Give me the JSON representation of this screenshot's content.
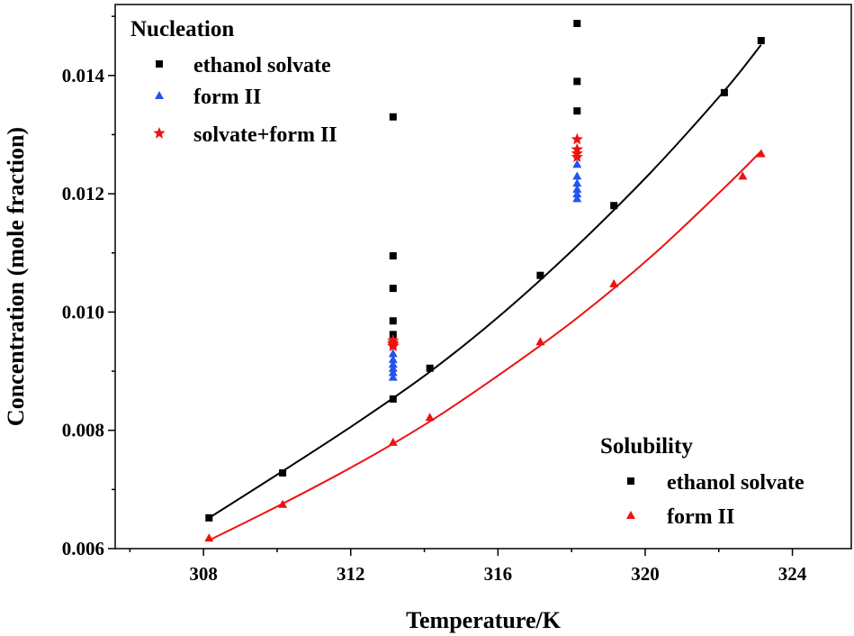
{
  "chart_data": {
    "type": "scatter",
    "xlabel": "Temperature/K",
    "ylabel": "Concentration (mole fraction)",
    "xlim": [
      305.6,
      325.6
    ],
    "ylim": [
      0.006,
      0.0152
    ],
    "x_ticks": [
      308,
      312,
      316,
      320,
      324
    ],
    "x_tick_labels": [
      "308",
      "312",
      "316",
      "320",
      "324"
    ],
    "y_ticks": [
      0.006,
      0.008,
      0.01,
      0.012,
      0.014
    ],
    "y_tick_labels": [
      "0.006",
      "0.008",
      "0.010",
      "0.012",
      "0.014"
    ],
    "legend_nucleation": {
      "title": "Nucleation",
      "placement": "top-left",
      "entries": [
        {
          "label": "ethanol solvate",
          "marker": "square",
          "color": "#000000"
        },
        {
          "label": "form II",
          "marker": "triangle",
          "color": "#2255ee"
        },
        {
          "label": "solvate+form II",
          "marker": "star",
          "color": "#ee1111"
        }
      ]
    },
    "legend_solubility": {
      "title": "Solubility",
      "placement": "bottom-right",
      "entries": [
        {
          "label": "ethanol solvate",
          "marker": "square",
          "color": "#000000"
        },
        {
          "label": "form II",
          "marker": "triangle",
          "color": "#ee1111"
        }
      ]
    },
    "series": [
      {
        "name": "Solubility - ethanol solvate",
        "marker": "square",
        "color": "#000000",
        "x": [
          308.15,
          310.15,
          313.15,
          314.15,
          317.15,
          319.15,
          322.15,
          323.15
        ],
        "y": [
          0.00652,
          0.00728,
          0.00853,
          0.00905,
          0.01062,
          0.0118,
          0.01371,
          0.01459
        ]
      },
      {
        "name": "Solubility - form II",
        "marker": "triangle",
        "color": "#ee1111",
        "x": [
          308.15,
          310.15,
          313.15,
          314.15,
          317.15,
          319.15,
          322.65,
          323.15
        ],
        "y": [
          0.00618,
          0.00675,
          0.0078,
          0.00822,
          0.0095,
          0.01048,
          0.0123,
          0.01268
        ]
      },
      {
        "name": "Nucleation - ethanol solvate",
        "marker": "square",
        "color": "#000000",
        "x": [
          313.15,
          313.15,
          313.15,
          313.15,
          313.15,
          318.15,
          318.15,
          318.15
        ],
        "y": [
          0.0133,
          0.01095,
          0.0104,
          0.00985,
          0.00962,
          0.01488,
          0.0139,
          0.0134
        ]
      },
      {
        "name": "Nucleation - form II",
        "marker": "triangle",
        "color": "#2255ee",
        "x": [
          313.15,
          313.15,
          313.15,
          313.15,
          313.15,
          313.15,
          318.15,
          318.15,
          318.15,
          318.15,
          318.15,
          318.15
        ],
        "y": [
          0.0093,
          0.0092,
          0.00912,
          0.00905,
          0.00898,
          0.0089,
          0.0125,
          0.0123,
          0.01218,
          0.01208,
          0.012,
          0.01192
        ]
      },
      {
        "name": "Nucleation - solvate+form II",
        "marker": "star",
        "color": "#ee1111",
        "x": [
          313.15,
          313.15,
          313.15,
          313.15,
          318.15,
          318.15,
          318.15,
          318.15
        ],
        "y": [
          0.00952,
          0.00948,
          0.00945,
          0.00942,
          0.01292,
          0.01275,
          0.01268,
          0.01262
        ]
      }
    ],
    "fit_curves": [
      {
        "name": "ethanol solvate fit",
        "color": "#000000",
        "x": [
          308.15,
          310.15,
          312.15,
          314.15,
          316.15,
          318.15,
          320.15,
          322.15,
          323.15
        ],
        "y": [
          0.00652,
          0.00731,
          0.00812,
          0.00899,
          0.00999,
          0.01112,
          0.01236,
          0.01374,
          0.01452
        ]
      },
      {
        "name": "form II fit",
        "color": "#ee1111",
        "x": [
          308.15,
          310.15,
          312.15,
          314.15,
          316.15,
          318.15,
          320.15,
          322.15,
          323.15
        ],
        "y": [
          0.00614,
          0.00676,
          0.00742,
          0.00815,
          0.00899,
          0.0099,
          0.01093,
          0.0121,
          0.01272
        ]
      }
    ]
  }
}
